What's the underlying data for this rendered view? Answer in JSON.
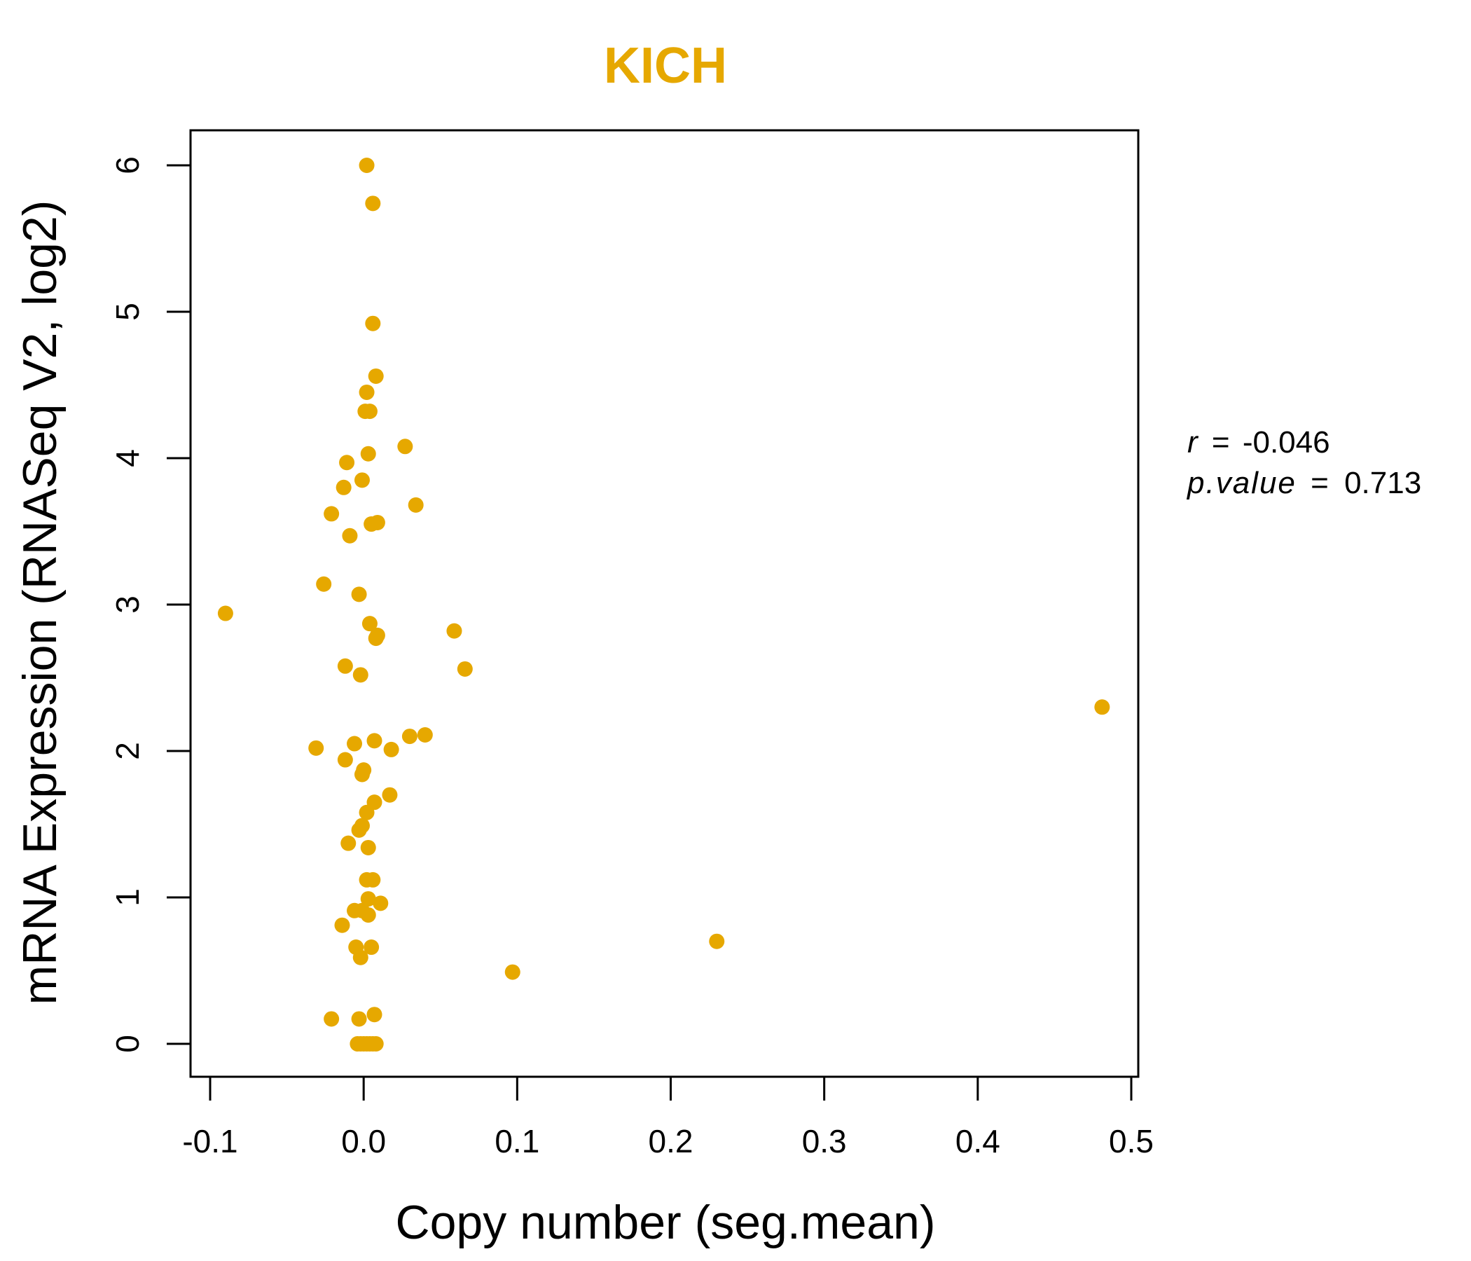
{
  "chart_data": {
    "type": "scatter",
    "title": "KICH",
    "xlabel": "Copy number (seg.mean)",
    "ylabel": "mRNA Expression (RNASeq V2, log2)",
    "xlim": [
      -0.1,
      0.5
    ],
    "ylim": [
      0,
      6
    ],
    "x_ticks": [
      "-0.1",
      "0.0",
      "0.1",
      "0.2",
      "0.3",
      "0.4",
      "0.5"
    ],
    "y_ticks": [
      "0",
      "1",
      "2",
      "3",
      "4",
      "5",
      "6"
    ],
    "grid": false,
    "color": "#E6A800",
    "annotation": {
      "r_label": "r",
      "r_value": "-0.046",
      "p_label": "p.value",
      "p_value": "0.713"
    },
    "points": [
      {
        "x": 0.002,
        "y": 6.0
      },
      {
        "x": 0.006,
        "y": 5.74
      },
      {
        "x": 0.006,
        "y": 4.92
      },
      {
        "x": 0.008,
        "y": 4.56
      },
      {
        "x": 0.002,
        "y": 4.45
      },
      {
        "x": 0.001,
        "y": 4.32
      },
      {
        "x": 0.004,
        "y": 4.32
      },
      {
        "x": 0.027,
        "y": 4.08
      },
      {
        "x": 0.003,
        "y": 4.03
      },
      {
        "x": -0.011,
        "y": 3.97
      },
      {
        "x": -0.001,
        "y": 3.85
      },
      {
        "x": -0.013,
        "y": 3.8
      },
      {
        "x": 0.034,
        "y": 3.68
      },
      {
        "x": -0.021,
        "y": 3.62
      },
      {
        "x": 0.009,
        "y": 3.56
      },
      {
        "x": 0.005,
        "y": 3.55
      },
      {
        "x": -0.009,
        "y": 3.47
      },
      {
        "x": -0.026,
        "y": 3.14
      },
      {
        "x": -0.003,
        "y": 3.07
      },
      {
        "x": -0.09,
        "y": 2.94
      },
      {
        "x": 0.004,
        "y": 2.87
      },
      {
        "x": 0.059,
        "y": 2.82
      },
      {
        "x": 0.008,
        "y": 2.77
      },
      {
        "x": 0.009,
        "y": 2.79
      },
      {
        "x": -0.012,
        "y": 2.58
      },
      {
        "x": 0.066,
        "y": 2.56
      },
      {
        "x": -0.002,
        "y": 2.52
      },
      {
        "x": 0.481,
        "y": 2.3
      },
      {
        "x": 0.04,
        "y": 2.11
      },
      {
        "x": 0.03,
        "y": 2.1
      },
      {
        "x": 0.007,
        "y": 2.07
      },
      {
        "x": -0.006,
        "y": 2.05
      },
      {
        "x": -0.031,
        "y": 2.02
      },
      {
        "x": 0.018,
        "y": 2.01
      },
      {
        "x": -0.012,
        "y": 1.94
      },
      {
        "x": 0.0,
        "y": 1.87
      },
      {
        "x": -0.001,
        "y": 1.84
      },
      {
        "x": 0.017,
        "y": 1.7
      },
      {
        "x": 0.007,
        "y": 1.65
      },
      {
        "x": 0.002,
        "y": 1.58
      },
      {
        "x": -0.001,
        "y": 1.49
      },
      {
        "x": -0.003,
        "y": 1.46
      },
      {
        "x": -0.01,
        "y": 1.37
      },
      {
        "x": 0.003,
        "y": 1.34
      },
      {
        "x": 0.002,
        "y": 1.12
      },
      {
        "x": 0.006,
        "y": 1.12
      },
      {
        "x": 0.003,
        "y": 0.99
      },
      {
        "x": 0.011,
        "y": 0.96
      },
      {
        "x": -0.006,
        "y": 0.91
      },
      {
        "x": -0.001,
        "y": 0.91
      },
      {
        "x": 0.003,
        "y": 0.88
      },
      {
        "x": -0.014,
        "y": 0.81
      },
      {
        "x": 0.23,
        "y": 0.7
      },
      {
        "x": -0.005,
        "y": 0.66
      },
      {
        "x": 0.005,
        "y": 0.66
      },
      {
        "x": -0.002,
        "y": 0.59
      },
      {
        "x": 0.097,
        "y": 0.49
      },
      {
        "x": 0.007,
        "y": 0.2
      },
      {
        "x": -0.021,
        "y": 0.17
      },
      {
        "x": -0.003,
        "y": 0.17
      },
      {
        "x": -0.004,
        "y": 0.0
      },
      {
        "x": -0.002,
        "y": 0.0
      },
      {
        "x": 0.0,
        "y": 0.0
      },
      {
        "x": 0.002,
        "y": 0.0
      },
      {
        "x": 0.004,
        "y": 0.0
      },
      {
        "x": 0.006,
        "y": 0.0
      },
      {
        "x": 0.008,
        "y": 0.0
      }
    ]
  }
}
